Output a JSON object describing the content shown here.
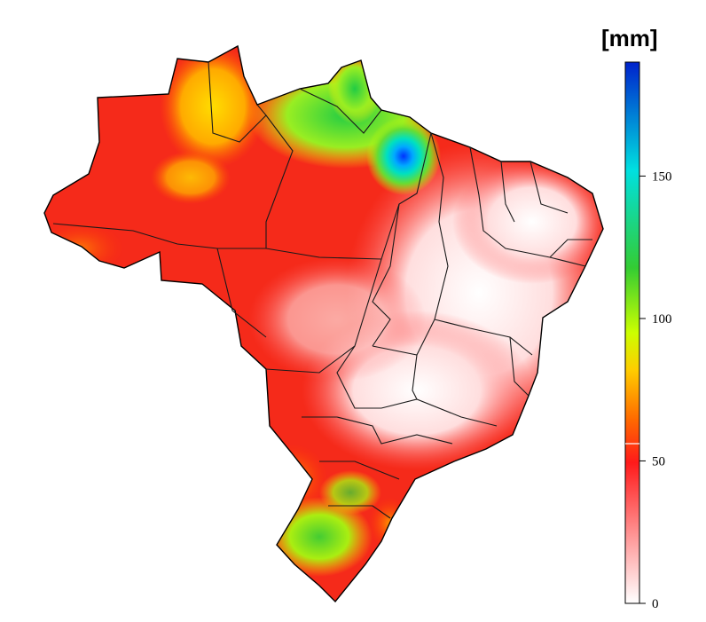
{
  "map": {
    "region": "Brazil",
    "variable": "precipitation",
    "features": [
      {
        "label": "blue maximum near Amapá / Pará coast",
        "value_mm": 190
      },
      {
        "label": "green zone in Amapá / north Pará",
        "value_mm": 110
      },
      {
        "label": "green zone in Rio Grande do Sul",
        "value_mm": 100
      },
      {
        "label": "yellow-orange Roraima / northern Amazonas",
        "value_mm": 70
      },
      {
        "label": "red Amazon basin and center-west",
        "value_mm": 45
      },
      {
        "label": "white-pink Northeast and Southeast interior",
        "value_mm": 10
      }
    ]
  },
  "legend": {
    "unit": "[mm]",
    "min": 0,
    "max": 190,
    "ticks": [
      {
        "value": 0,
        "label": "0"
      },
      {
        "value": 50,
        "label": "50"
      },
      {
        "value": 100,
        "label": "100"
      },
      {
        "value": 150,
        "label": "150"
      }
    ],
    "colors": [
      "#ffffff",
      "#ff1a1a",
      "#ff8c00",
      "#ffff00",
      "#33cc33",
      "#00e5e5",
      "#0000cc"
    ]
  }
}
